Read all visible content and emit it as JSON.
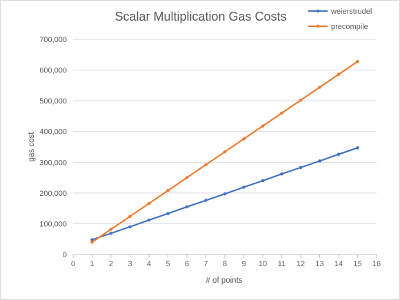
{
  "chart_data": {
    "type": "line",
    "title": "Scalar Multiplication Gas Costs",
    "xlabel": "# of points",
    "ylabel": "gas cost",
    "xlim": [
      0,
      16
    ],
    "ylim": [
      0,
      700000
    ],
    "x_ticks": [
      "0",
      "1",
      "2",
      "3",
      "4",
      "5",
      "6",
      "7",
      "8",
      "9",
      "10",
      "11",
      "12",
      "13",
      "14",
      "15",
      "16"
    ],
    "y_ticks": [
      "0",
      "100,000",
      "200,000",
      "300,000",
      "400,000",
      "500,000",
      "600,000",
      "700,000"
    ],
    "grid": "horizontal",
    "legend_position": "top-right",
    "x": [
      1,
      2,
      3,
      4,
      5,
      6,
      7,
      8,
      9,
      10,
      11,
      12,
      13,
      14,
      15
    ],
    "series": [
      {
        "name": "weierstrudel",
        "color": "#4472c4",
        "values": [
          48000,
          69000,
          90000,
          112000,
          133000,
          155000,
          176000,
          197000,
          219000,
          240000,
          262000,
          283000,
          304000,
          326000,
          347000
        ]
      },
      {
        "name": "precompile",
        "color": "#ed7d31",
        "values": [
          40000,
          82000,
          124000,
          166000,
          208000,
          250000,
          292000,
          334000,
          376000,
          418000,
          460000,
          502000,
          544000,
          586000,
          628000
        ]
      }
    ]
  }
}
